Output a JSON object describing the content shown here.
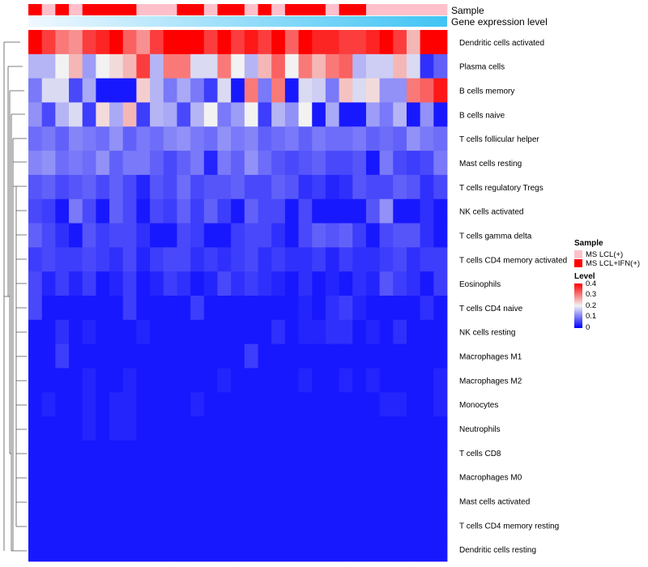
{
  "chart_data": {
    "type": "heatmap",
    "title": "",
    "annotation_tracks": [
      {
        "name": "Sample",
        "values": [
          "MS LCL+IFN(+)",
          "MS LCL(+)",
          "MS LCL+IFN(+)",
          "MS LCL(+)",
          "MS LCL+IFN(+)",
          "MS LCL+IFN(+)",
          "MS LCL+IFN(+)",
          "MS LCL+IFN(+)",
          "MS LCL(+)",
          "MS LCL(+)",
          "MS LCL(+)",
          "MS LCL+IFN(+)",
          "MS LCL+IFN(+)",
          "MS LCL(+)",
          "MS LCL+IFN(+)",
          "MS LCL+IFN(+)",
          "MS LCL(+)",
          "MS LCL+IFN(+)",
          "MS LCL(+)",
          "MS LCL+IFN(+)",
          "MS LCL+IFN(+)",
          "MS LCL+IFN(+)",
          "MS LCL(+)",
          "MS LCL+IFN(+)",
          "MS LCL+IFN(+)",
          "MS LCL(+)",
          "MS LCL(+)",
          "MS LCL(+)",
          "MS LCL(+)",
          "MS LCL(+)",
          "MS LCL(+)"
        ]
      },
      {
        "name": "Gene expression level",
        "type": "gradient",
        "from": 0,
        "to": 1
      }
    ],
    "row_labels": [
      "Dendritic cells activated",
      "Plasma cells",
      "B cells memory",
      "B cells naive",
      "T cells follicular helper",
      "Mast cells resting",
      "T cells regulatory  Tregs",
      "NK cells activated",
      "T cells gamma delta",
      "T cells CD4 memory activated",
      "Eosinophils",
      "T cells CD4 naive",
      "NK cells resting",
      "Macrophages M1",
      "Macrophages M2",
      "Monocytes",
      "Neutrophils",
      "T cells CD8",
      "Macrophages M0",
      "Mast cells activated",
      "T cells CD4 memory resting",
      "Dendritic cells resting"
    ],
    "values": [
      [
        0.4,
        0.35,
        0.3,
        0.28,
        0.35,
        0.37,
        0.4,
        0.32,
        0.28,
        0.35,
        0.4,
        0.4,
        0.4,
        0.35,
        0.4,
        0.35,
        0.38,
        0.35,
        0.4,
        0.32,
        0.4,
        0.37,
        0.37,
        0.35,
        0.35,
        0.37,
        0.4,
        0.35,
        0.25,
        0.4,
        0.4
      ],
      [
        0.15,
        0.15,
        0.2,
        0.25,
        0.13,
        0.2,
        0.22,
        0.25,
        0.35,
        0.15,
        0.3,
        0.3,
        0.18,
        0.18,
        0.3,
        0.2,
        0.15,
        0.25,
        0.32,
        0.2,
        0.3,
        0.25,
        0.3,
        0.32,
        0.15,
        0.17,
        0.17,
        0.25,
        0.18,
        0.04,
        0.08
      ],
      [
        0.1,
        0.18,
        0.18,
        0.06,
        0.14,
        0.02,
        0.02,
        0.02,
        0.23,
        0.15,
        0.1,
        0.14,
        0.1,
        0.05,
        0.18,
        0.02,
        0.3,
        0.1,
        0.3,
        0.02,
        0.18,
        0.17,
        0.1,
        0.24,
        0.18,
        0.22,
        0.12,
        0.12,
        0.3,
        0.32,
        0.38
      ],
      [
        0.12,
        0.06,
        0.15,
        0.18,
        0.05,
        0.22,
        0.14,
        0.25,
        0.05,
        0.15,
        0.14,
        0.06,
        0.15,
        0.2,
        0.1,
        0.13,
        0.2,
        0.05,
        0.15,
        0.12,
        0.2,
        0.02,
        0.14,
        0.02,
        0.02,
        0.13,
        0.1,
        0.15,
        0.02,
        0.12,
        0.02
      ],
      [
        0.09,
        0.1,
        0.08,
        0.11,
        0.1,
        0.09,
        0.12,
        0.08,
        0.1,
        0.09,
        0.11,
        0.12,
        0.1,
        0.09,
        0.12,
        0.1,
        0.11,
        0.08,
        0.09,
        0.1,
        0.08,
        0.1,
        0.09,
        0.09,
        0.1,
        0.08,
        0.09,
        0.08,
        0.12,
        0.1,
        0.09
      ],
      [
        0.11,
        0.12,
        0.09,
        0.1,
        0.09,
        0.12,
        0.08,
        0.1,
        0.1,
        0.08,
        0.06,
        0.08,
        0.1,
        0.03,
        0.1,
        0.08,
        0.12,
        0.09,
        0.07,
        0.06,
        0.07,
        0.08,
        0.06,
        0.06,
        0.07,
        0.02,
        0.1,
        0.06,
        0.05,
        0.06,
        0.1
      ],
      [
        0.07,
        0.08,
        0.06,
        0.07,
        0.08,
        0.06,
        0.08,
        0.06,
        0.03,
        0.07,
        0.06,
        0.09,
        0.06,
        0.07,
        0.07,
        0.08,
        0.06,
        0.06,
        0.08,
        0.07,
        0.04,
        0.05,
        0.03,
        0.04,
        0.07,
        0.06,
        0.06,
        0.08,
        0.07,
        0.04,
        0.06
      ],
      [
        0.06,
        0.05,
        0.02,
        0.1,
        0.06,
        0.02,
        0.08,
        0.06,
        0.02,
        0.06,
        0.05,
        0.08,
        0.05,
        0.08,
        0.05,
        0.02,
        0.08,
        0.06,
        0.06,
        0.02,
        0.06,
        0.02,
        0.02,
        0.02,
        0.02,
        0.07,
        0.12,
        0.02,
        0.02,
        0.04,
        0.02
      ],
      [
        0.08,
        0.06,
        0.04,
        0.02,
        0.07,
        0.05,
        0.06,
        0.06,
        0.04,
        0.02,
        0.02,
        0.06,
        0.05,
        0.02,
        0.02,
        0.05,
        0.06,
        0.06,
        0.04,
        0.02,
        0.06,
        0.08,
        0.07,
        0.08,
        0.05,
        0.02,
        0.06,
        0.07,
        0.07,
        0.04,
        0.02
      ],
      [
        0.05,
        0.06,
        0.05,
        0.05,
        0.06,
        0.05,
        0.04,
        0.06,
        0.03,
        0.05,
        0.06,
        0.06,
        0.04,
        0.05,
        0.04,
        0.05,
        0.06,
        0.04,
        0.05,
        0.04,
        0.04,
        0.05,
        0.03,
        0.05,
        0.04,
        0.04,
        0.05,
        0.06,
        0.04,
        0.05,
        0.05
      ],
      [
        0.06,
        0.03,
        0.05,
        0.03,
        0.05,
        0.02,
        0.03,
        0.05,
        0.02,
        0.03,
        0.05,
        0.04,
        0.02,
        0.03,
        0.06,
        0.04,
        0.05,
        0.04,
        0.03,
        0.02,
        0.04,
        0.02,
        0.03,
        0.02,
        0.04,
        0.03,
        0.07,
        0.05,
        0.04,
        0.02,
        0.05
      ],
      [
        0.06,
        0.02,
        0.02,
        0.02,
        0.02,
        0.02,
        0.02,
        0.05,
        0.02,
        0.02,
        0.02,
        0.02,
        0.05,
        0.02,
        0.02,
        0.02,
        0.02,
        0.02,
        0.02,
        0.02,
        0.03,
        0.02,
        0.04,
        0.05,
        0.03,
        0.02,
        0.02,
        0.02,
        0.02,
        0.04,
        0.02
      ],
      [
        0.02,
        0.02,
        0.04,
        0.02,
        0.03,
        0.02,
        0.02,
        0.02,
        0.03,
        0.02,
        0.02,
        0.02,
        0.02,
        0.02,
        0.02,
        0.02,
        0.02,
        0.02,
        0.04,
        0.02,
        0.03,
        0.03,
        0.04,
        0.04,
        0.02,
        0.03,
        0.02,
        0.04,
        0.02,
        0.02,
        0.02
      ],
      [
        0.02,
        0.02,
        0.05,
        0.02,
        0.02,
        0.02,
        0.02,
        0.02,
        0.02,
        0.02,
        0.02,
        0.02,
        0.02,
        0.02,
        0.02,
        0.02,
        0.05,
        0.02,
        0.02,
        0.02,
        0.02,
        0.02,
        0.02,
        0.02,
        0.02,
        0.02,
        0.02,
        0.02,
        0.02,
        0.02,
        0.02
      ],
      [
        0.02,
        0.02,
        0.02,
        0.02,
        0.03,
        0.02,
        0.02,
        0.03,
        0.02,
        0.02,
        0.02,
        0.02,
        0.02,
        0.02,
        0.03,
        0.02,
        0.02,
        0.02,
        0.02,
        0.02,
        0.03,
        0.02,
        0.02,
        0.03,
        0.02,
        0.03,
        0.02,
        0.02,
        0.02,
        0.02,
        0.03
      ],
      [
        0.02,
        0.03,
        0.02,
        0.02,
        0.03,
        0.02,
        0.03,
        0.03,
        0.02,
        0.02,
        0.02,
        0.02,
        0.03,
        0.02,
        0.02,
        0.02,
        0.02,
        0.02,
        0.02,
        0.02,
        0.02,
        0.02,
        0.02,
        0.02,
        0.02,
        0.02,
        0.03,
        0.03,
        0.02,
        0.02,
        0.03
      ],
      [
        0.02,
        0.02,
        0.02,
        0.02,
        0.03,
        0.02,
        0.03,
        0.03,
        0.02,
        0.02,
        0.02,
        0.02,
        0.02,
        0.02,
        0.02,
        0.02,
        0.02,
        0.02,
        0.02,
        0.02,
        0.02,
        0.02,
        0.02,
        0.02,
        0.02,
        0.02,
        0.02,
        0.02,
        0.02,
        0.02,
        0.02
      ],
      [
        0.02,
        0.02,
        0.02,
        0.02,
        0.02,
        0.02,
        0.02,
        0.02,
        0.02,
        0.02,
        0.02,
        0.02,
        0.02,
        0.02,
        0.02,
        0.02,
        0.02,
        0.02,
        0.02,
        0.02,
        0.02,
        0.02,
        0.02,
        0.02,
        0.02,
        0.02,
        0.02,
        0.02,
        0.02,
        0.02,
        0.02
      ],
      [
        0.02,
        0.02,
        0.02,
        0.02,
        0.02,
        0.02,
        0.02,
        0.02,
        0.02,
        0.02,
        0.02,
        0.02,
        0.02,
        0.02,
        0.02,
        0.02,
        0.02,
        0.02,
        0.02,
        0.02,
        0.02,
        0.02,
        0.02,
        0.02,
        0.02,
        0.02,
        0.02,
        0.02,
        0.02,
        0.02,
        0.02
      ],
      [
        0.02,
        0.02,
        0.02,
        0.02,
        0.02,
        0.02,
        0.02,
        0.02,
        0.02,
        0.02,
        0.02,
        0.02,
        0.02,
        0.02,
        0.02,
        0.02,
        0.02,
        0.02,
        0.02,
        0.02,
        0.02,
        0.02,
        0.02,
        0.02,
        0.02,
        0.02,
        0.02,
        0.02,
        0.02,
        0.02,
        0.02
      ],
      [
        0.02,
        0.02,
        0.02,
        0.02,
        0.02,
        0.02,
        0.02,
        0.02,
        0.02,
        0.02,
        0.02,
        0.02,
        0.02,
        0.02,
        0.02,
        0.02,
        0.02,
        0.02,
        0.02,
        0.02,
        0.02,
        0.02,
        0.02,
        0.02,
        0.02,
        0.02,
        0.02,
        0.02,
        0.02,
        0.02,
        0.02
      ],
      [
        0.02,
        0.02,
        0.02,
        0.02,
        0.02,
        0.02,
        0.02,
        0.02,
        0.02,
        0.02,
        0.02,
        0.02,
        0.02,
        0.02,
        0.02,
        0.02,
        0.02,
        0.02,
        0.02,
        0.02,
        0.02,
        0.02,
        0.02,
        0.02,
        0.02,
        0.02,
        0.02,
        0.02,
        0.02,
        0.02,
        0.02
      ]
    ],
    "color_scale": {
      "min": 0,
      "mid": 0.2,
      "max": 0.4,
      "low_color": "#0000ff",
      "mid_color": "#f2f2f2",
      "high_color": "#ff0000"
    },
    "legend": {
      "position": "right",
      "sample_title": "Sample",
      "sample_entries": [
        {
          "label": "MS LCL(+)",
          "color": "#ffc0cb"
        },
        {
          "label": "MS LCL+IFN(+)",
          "color": "#ff0000"
        }
      ],
      "level_title": "Level",
      "level_ticks": [
        "0.4",
        "0.3",
        "0.2",
        "0.1",
        "0"
      ]
    },
    "track_colors": {
      "Sample_MS_LCL": "#ffc0cb",
      "Sample_MS_LCL_IFN": "#ff0000",
      "gradient_from": "#f0f8ff",
      "gradient_to": "#40c4f4"
    },
    "row_dendrogram": true
  }
}
